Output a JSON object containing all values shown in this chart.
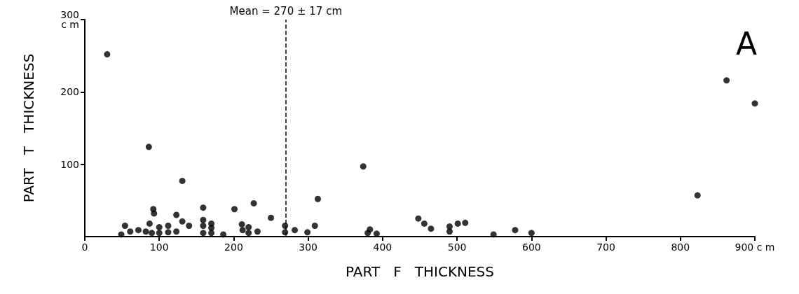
{
  "chart_data": {
    "type": "scatter",
    "xlabel": "PART   F   THICKNESS",
    "ylabel": "PART   T   THICKNESS",
    "x": [
      30,
      49,
      54,
      61,
      72,
      82,
      86,
      87,
      90,
      92,
      93,
      100,
      100,
      112,
      112,
      123,
      123,
      131,
      131,
      140,
      159,
      159,
      159,
      159,
      170,
      170,
      170,
      186,
      201,
      211,
      212,
      220,
      220,
      227,
      232,
      250,
      269,
      269,
      282,
      299,
      309,
      313,
      374,
      380,
      383,
      392,
      448,
      456,
      465,
      490,
      490,
      501,
      511,
      549,
      578,
      600,
      823,
      862,
      900
    ],
    "values": [
      252,
      3,
      15,
      7,
      9,
      7,
      124,
      18,
      5,
      38,
      32,
      13,
      5,
      15,
      6,
      30,
      7,
      77,
      21,
      15,
      40,
      23,
      15,
      5,
      18,
      12,
      5,
      3,
      38,
      17,
      9,
      13,
      5,
      46,
      7,
      26,
      15,
      6,
      9,
      6,
      15,
      52,
      97,
      5,
      10,
      4,
      25,
      18,
      11,
      14,
      7,
      18,
      19,
      3,
      9,
      5,
      57,
      216,
      184
    ],
    "color": "#000000",
    "marker": "circle",
    "xlim": [
      0,
      900
    ],
    "xticks": [
      0,
      100,
      200,
      300,
      400,
      500,
      600,
      700,
      800,
      {
        "value": 900,
        "label": "900 c m"
      }
    ],
    "ylim": [
      0,
      300
    ],
    "yticks": [
      100,
      200,
      {
        "value": 300,
        "label": "300\nc m"
      }
    ],
    "grid": false,
    "ref_lines": [
      {
        "axis": "x",
        "value": 270,
        "label": "Mean = 270 ± 17 cm",
        "line_style": "dashed"
      }
    ],
    "annotations": [
      "A"
    ]
  }
}
